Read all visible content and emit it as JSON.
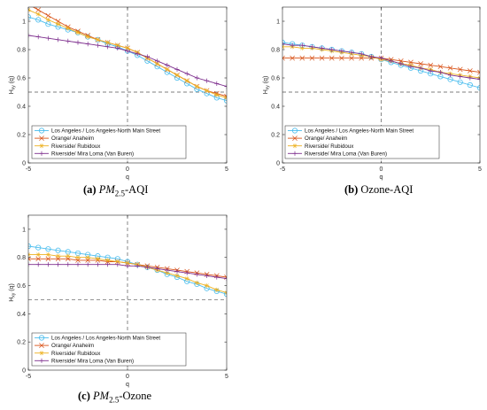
{
  "legend": [
    {
      "label": "Los Angeles / Los Angeles-North Main Street",
      "color": "#4DBEEE",
      "marker": "circle"
    },
    {
      "label": "Orange/ Anaheim",
      "color": "#D95319",
      "marker": "x"
    },
    {
      "label": "Riverside/ Rubidoux",
      "color": "#EDB120",
      "marker": "star"
    },
    {
      "label": "Riverside/ Mira Loma (Van Buren)",
      "color": "#7E2F8E",
      "marker": "plus"
    }
  ],
  "captions": [
    {
      "letter": "(a)",
      "pm": "PM",
      "sub": "2.5",
      "rest": "-AQI"
    },
    {
      "letter": "(b)",
      "text": "Ozone-AQI"
    },
    {
      "letter": "(c)",
      "pm": "PM",
      "sub": "2.5",
      "rest": "-Ozone"
    }
  ],
  "chart_data": [
    {
      "type": "line",
      "xlabel": "q",
      "ylabel": "H_xy (q)",
      "xlim": [
        -5,
        5
      ],
      "ylim": [
        0,
        1.1
      ],
      "xticks": [
        "-5",
        "0",
        "5"
      ],
      "yticks": [
        "0",
        "0.2",
        "0.4",
        "0.6",
        "0.8",
        "1"
      ],
      "reference_lines": {
        "x": 0,
        "y": 0.5
      },
      "legend_position": "bottom-left",
      "x": [
        -5,
        -4.5,
        -4,
        -3.5,
        -3,
        -2.5,
        -2,
        -1.5,
        -1,
        -0.5,
        0,
        0.5,
        1,
        1.5,
        2,
        2.5,
        3,
        3.5,
        4,
        4.5,
        5
      ],
      "series": [
        {
          "name": "Los Angeles / Los Angeles-North Main Street",
          "values": [
            1.03,
            1.01,
            0.98,
            0.96,
            0.94,
            0.92,
            0.89,
            0.87,
            0.84,
            0.82,
            0.79,
            0.76,
            0.72,
            0.68,
            0.64,
            0.6,
            0.56,
            0.52,
            0.49,
            0.46,
            0.44
          ]
        },
        {
          "name": "Orange/ Anaheim",
          "values": [
            1.12,
            1.08,
            1.04,
            1.0,
            0.96,
            0.93,
            0.9,
            0.87,
            0.85,
            0.83,
            0.81,
            0.78,
            0.74,
            0.7,
            0.66,
            0.62,
            0.58,
            0.54,
            0.51,
            0.49,
            0.47
          ]
        },
        {
          "name": "Riverside/ Rubidoux",
          "values": [
            1.08,
            1.05,
            1.01,
            0.98,
            0.95,
            0.92,
            0.89,
            0.87,
            0.85,
            0.83,
            0.81,
            0.78,
            0.74,
            0.7,
            0.66,
            0.62,
            0.58,
            0.54,
            0.51,
            0.48,
            0.46
          ]
        },
        {
          "name": "Riverside/ Mira Loma (Van Buren)",
          "values": [
            0.9,
            0.89,
            0.88,
            0.87,
            0.86,
            0.85,
            0.84,
            0.83,
            0.82,
            0.81,
            0.79,
            0.77,
            0.75,
            0.72,
            0.69,
            0.66,
            0.63,
            0.6,
            0.58,
            0.56,
            0.54
          ]
        }
      ]
    },
    {
      "type": "line",
      "xlabel": "q",
      "ylabel": "H_xy (q)",
      "xlim": [
        -5,
        5
      ],
      "ylim": [
        0,
        1.1
      ],
      "xticks": [
        "-5",
        "0",
        "5"
      ],
      "yticks": [
        "0",
        "0.2",
        "0.4",
        "0.6",
        "0.8",
        "1"
      ],
      "reference_lines": {
        "x": 0,
        "y": 0.5
      },
      "legend_position": "bottom-left",
      "x": [
        -5,
        -4.5,
        -4,
        -3.5,
        -3,
        -2.5,
        -2,
        -1.5,
        -1,
        -0.5,
        0,
        0.5,
        1,
        1.5,
        2,
        2.5,
        3,
        3.5,
        4,
        4.5,
        5
      ],
      "series": [
        {
          "name": "Los Angeles / Los Angeles-North Main Street",
          "values": [
            0.85,
            0.84,
            0.83,
            0.82,
            0.81,
            0.8,
            0.79,
            0.78,
            0.77,
            0.75,
            0.73,
            0.71,
            0.69,
            0.67,
            0.65,
            0.63,
            0.61,
            0.59,
            0.57,
            0.55,
            0.53
          ]
        },
        {
          "name": "Orange/ Anaheim",
          "values": [
            0.74,
            0.74,
            0.74,
            0.74,
            0.74,
            0.74,
            0.74,
            0.74,
            0.74,
            0.74,
            0.74,
            0.73,
            0.72,
            0.71,
            0.7,
            0.69,
            0.68,
            0.67,
            0.66,
            0.65,
            0.64
          ]
        },
        {
          "name": "Riverside/ Rubidoux",
          "values": [
            0.82,
            0.82,
            0.81,
            0.81,
            0.8,
            0.79,
            0.78,
            0.77,
            0.76,
            0.75,
            0.73,
            0.72,
            0.7,
            0.69,
            0.67,
            0.66,
            0.64,
            0.63,
            0.62,
            0.61,
            0.6
          ]
        },
        {
          "name": "Riverside/ Mira Loma (Van Buren)",
          "values": [
            0.84,
            0.83,
            0.83,
            0.82,
            0.81,
            0.8,
            0.79,
            0.78,
            0.77,
            0.75,
            0.74,
            0.72,
            0.7,
            0.68,
            0.67,
            0.65,
            0.64,
            0.62,
            0.61,
            0.6,
            0.59
          ]
        }
      ]
    },
    {
      "type": "line",
      "xlabel": "q",
      "ylabel": "H_xy (q)",
      "xlim": [
        -5,
        5
      ],
      "ylim": [
        0,
        1.1
      ],
      "xticks": [
        "-5",
        "0",
        "5"
      ],
      "yticks": [
        "0",
        "0.2",
        "0.4",
        "0.6",
        "0.8",
        "1"
      ],
      "reference_lines": {
        "x": 0,
        "y": 0.5
      },
      "legend_position": "bottom-left",
      "x": [
        -5,
        -4.5,
        -4,
        -3.5,
        -3,
        -2.5,
        -2,
        -1.5,
        -1,
        -0.5,
        0,
        0.5,
        1,
        1.5,
        2,
        2.5,
        3,
        3.5,
        4,
        4.5,
        5
      ],
      "series": [
        {
          "name": "Los Angeles / Los Angeles-North Main Street",
          "values": [
            0.88,
            0.87,
            0.86,
            0.85,
            0.84,
            0.83,
            0.82,
            0.81,
            0.8,
            0.79,
            0.77,
            0.75,
            0.73,
            0.71,
            0.68,
            0.66,
            0.63,
            0.61,
            0.58,
            0.56,
            0.54
          ]
        },
        {
          "name": "Orange/ Anaheim",
          "values": [
            0.79,
            0.79,
            0.79,
            0.79,
            0.79,
            0.78,
            0.78,
            0.78,
            0.77,
            0.77,
            0.76,
            0.75,
            0.74,
            0.73,
            0.72,
            0.71,
            0.7,
            0.69,
            0.68,
            0.67,
            0.66
          ]
        },
        {
          "name": "Riverside/ Rubidoux",
          "values": [
            0.82,
            0.82,
            0.82,
            0.81,
            0.81,
            0.8,
            0.8,
            0.79,
            0.78,
            0.77,
            0.76,
            0.75,
            0.73,
            0.71,
            0.69,
            0.67,
            0.65,
            0.62,
            0.6,
            0.57,
            0.55
          ]
        },
        {
          "name": "Riverside/ Mira Loma (Van Buren)",
          "values": [
            0.75,
            0.75,
            0.75,
            0.75,
            0.75,
            0.75,
            0.75,
            0.75,
            0.75,
            0.75,
            0.74,
            0.74,
            0.73,
            0.72,
            0.71,
            0.7,
            0.69,
            0.68,
            0.67,
            0.66,
            0.65
          ]
        }
      ]
    }
  ]
}
